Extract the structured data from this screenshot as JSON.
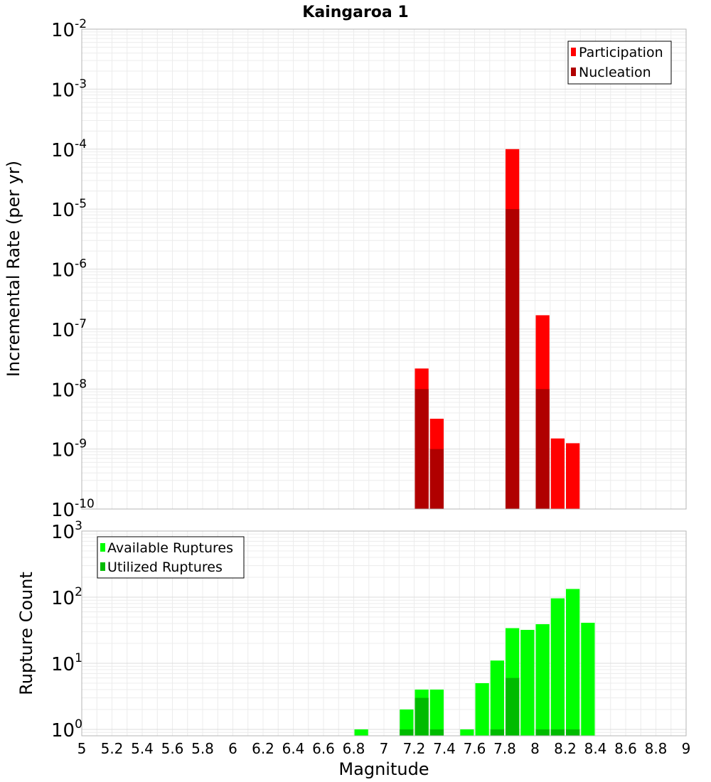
{
  "chart_data": [
    {
      "type": "bar",
      "title": "Kaingaroa 1",
      "ylabel": "Incremental Rate (per yr)",
      "xlabel": "",
      "yscale": "log",
      "ylim": [
        1e-10,
        0.01
      ],
      "xlim": [
        5,
        9
      ],
      "grid": true,
      "legend_position": "top-right",
      "tick_labels": [
        {
          "base": "10",
          "exp": "-10",
          "value": 1e-10
        },
        {
          "base": "10",
          "exp": "-9",
          "value": 1e-09
        },
        {
          "base": "10",
          "exp": "-8",
          "value": 1e-08
        },
        {
          "base": "10",
          "exp": "-7",
          "value": 1e-07
        },
        {
          "base": "10",
          "exp": "-6",
          "value": 1e-06
        },
        {
          "base": "10",
          "exp": "-5",
          "value": 1e-05
        },
        {
          "base": "10",
          "exp": "-4",
          "value": 0.0001
        },
        {
          "base": "10",
          "exp": "-3",
          "value": 0.001
        },
        {
          "base": "10",
          "exp": "-2",
          "value": 0.01
        }
      ],
      "series": [
        {
          "name": "Participation",
          "color": "#ff0000",
          "points": [
            {
              "x": 7.25,
              "y": 2.2e-08
            },
            {
              "x": 7.35,
              "y": 3.2e-09
            },
            {
              "x": 7.85,
              "y": 0.0001
            },
            {
              "x": 8.05,
              "y": 1.7e-07
            },
            {
              "x": 8.15,
              "y": 1.5e-09
            },
            {
              "x": 8.25,
              "y": 1.25e-09
            }
          ]
        },
        {
          "name": "Nucleation",
          "color": "#b00000",
          "points": [
            {
              "x": 7.25,
              "y": 1e-08
            },
            {
              "x": 7.35,
              "y": 1e-09
            },
            {
              "x": 7.85,
              "y": 1e-05
            },
            {
              "x": 8.05,
              "y": 1e-08
            }
          ]
        }
      ]
    },
    {
      "type": "bar",
      "title": "",
      "ylabel": "Rupture Count",
      "xlabel": "Magnitude",
      "yscale": "log",
      "ylim": [
        0.8,
        1000
      ],
      "xlim": [
        5,
        9
      ],
      "grid": true,
      "legend_position": "top-left",
      "x_ticks": [
        "5",
        "5.2",
        "5.4",
        "5.6",
        "5.8",
        "6",
        "6.2",
        "6.4",
        "6.6",
        "6.8",
        "7",
        "7.2",
        "7.4",
        "7.6",
        "7.8",
        "8",
        "8.2",
        "8.4",
        "8.6",
        "8.8",
        "9"
      ],
      "tick_labels": [
        {
          "base": "10",
          "exp": "0",
          "value": 1
        },
        {
          "base": "10",
          "exp": "1",
          "value": 10
        },
        {
          "base": "10",
          "exp": "2",
          "value": 100
        },
        {
          "base": "10",
          "exp": "3",
          "value": 1000
        }
      ],
      "series": [
        {
          "name": "Available Ruptures",
          "color": "#00ff00",
          "points": [
            {
              "x": 6.85,
              "y": 1
            },
            {
              "x": 7.15,
              "y": 2
            },
            {
              "x": 7.25,
              "y": 4
            },
            {
              "x": 7.35,
              "y": 4
            },
            {
              "x": 7.55,
              "y": 1
            },
            {
              "x": 7.65,
              "y": 5
            },
            {
              "x": 7.75,
              "y": 11
            },
            {
              "x": 7.85,
              "y": 34
            },
            {
              "x": 7.95,
              "y": 32
            },
            {
              "x": 8.05,
              "y": 39
            },
            {
              "x": 8.15,
              "y": 96
            },
            {
              "x": 8.25,
              "y": 133
            },
            {
              "x": 8.35,
              "y": 41
            }
          ]
        },
        {
          "name": "Utilized Ruptures",
          "color": "#00bb00",
          "points": [
            {
              "x": 7.15,
              "y": 1
            },
            {
              "x": 7.25,
              "y": 3
            },
            {
              "x": 7.35,
              "y": 1
            },
            {
              "x": 7.75,
              "y": 1
            },
            {
              "x": 7.85,
              "y": 6
            },
            {
              "x": 8.05,
              "y": 1
            },
            {
              "x": 8.15,
              "y": 1
            },
            {
              "x": 8.25,
              "y": 1
            }
          ]
        }
      ]
    }
  ]
}
